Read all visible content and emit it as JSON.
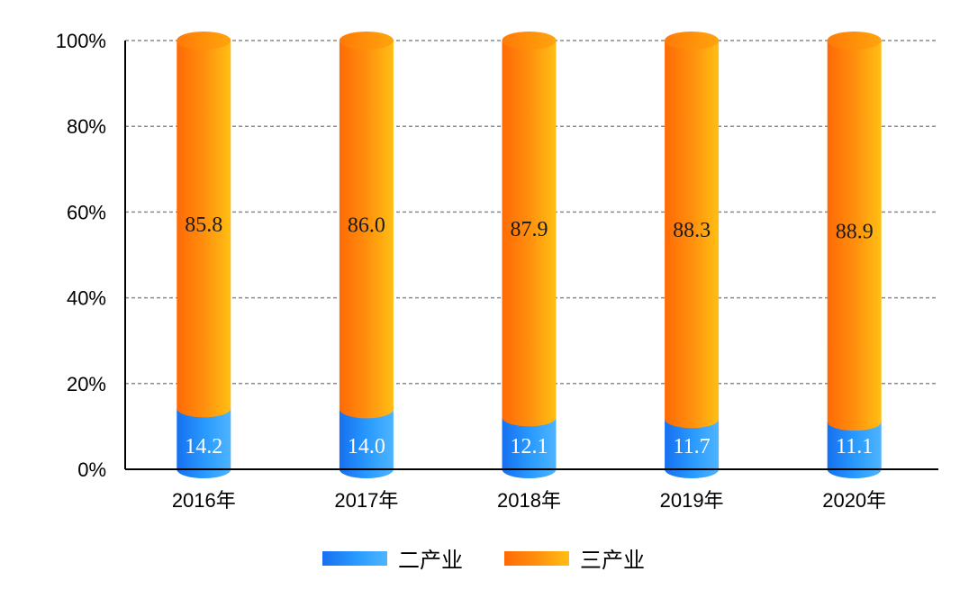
{
  "chart_data": {
    "type": "bar",
    "stacked": true,
    "categories": [
      "2016年",
      "2017年",
      "2018年",
      "2019年",
      "2020年"
    ],
    "series": [
      {
        "name": "二产业",
        "values": [
          14.2,
          14.0,
          12.1,
          11.7,
          11.1
        ],
        "color": "#1e8fff"
      },
      {
        "name": "三产业",
        "values": [
          85.8,
          86.0,
          87.9,
          88.3,
          88.9
        ],
        "color": "#ff8c0a"
      }
    ],
    "y_ticks": [
      "0%",
      "20%",
      "40%",
      "60%",
      "80%",
      "100%"
    ],
    "ylim": [
      0,
      100
    ],
    "grid": true,
    "legend_position": "bottom"
  }
}
